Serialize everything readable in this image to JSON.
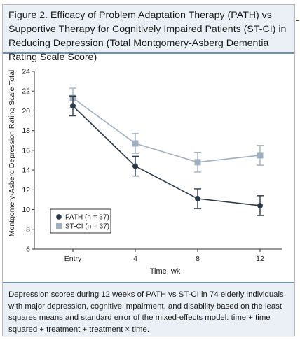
{
  "figure": {
    "title": "Figure 2. Efficacy of Problem Adaptation Therapy (PATH) vs Supportive Therapy for Cognitively Impaired Patients (ST-CI) in Reducing Depression (Total Montgomery-Asberg Dementia Rating Scale Score)",
    "caption": "Depression scores during 12 weeks of PATH vs ST-CI in 74 elderly individuals with major depression, cognitive impairment, and disability based on the least squares means and standard error of the mixed-effects model: time + time squared + treatment + treatment × time."
  },
  "chart_data": {
    "type": "line",
    "categories": [
      "Entry",
      "4",
      "8",
      "12"
    ],
    "xlabel": "Time, wk",
    "ylabel": "Montgomery-Asberg Depression Rating Scale Total",
    "ylim": [
      6,
      24
    ],
    "yticks": [
      6,
      8,
      10,
      12,
      14,
      16,
      18,
      20,
      22,
      24
    ],
    "grid": false,
    "legend_position": "bottom-left",
    "series": [
      {
        "name": "PATH (n = 37)",
        "marker": "circle",
        "color": "#2b3a48",
        "values": [
          20.5,
          14.4,
          11.1,
          10.4
        ],
        "error": [
          1.0,
          1.0,
          1.0,
          1.0
        ]
      },
      {
        "name": "ST-CI (n = 37)",
        "marker": "square",
        "color": "#9fb1c1",
        "values": [
          21.3,
          16.7,
          14.8,
          15.5
        ],
        "error": [
          1.0,
          1.0,
          1.0,
          1.0
        ]
      }
    ]
  }
}
